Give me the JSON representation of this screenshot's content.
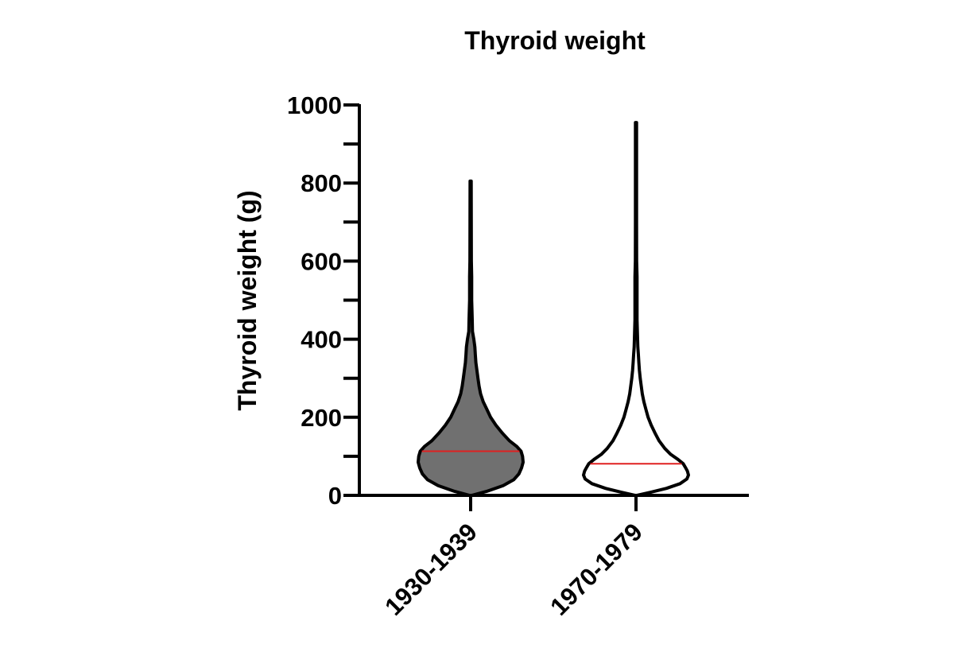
{
  "chart_data": {
    "type": "violin",
    "title": "Thyroid weight",
    "ylabel": "Thyroid weight (g)",
    "xlabel": "",
    "ylim": [
      0,
      1000
    ],
    "yticks": [
      0,
      200,
      400,
      600,
      800,
      1000
    ],
    "yminor_ticks": [
      100,
      300,
      500,
      700,
      900
    ],
    "grid": false,
    "legend": "none",
    "categories": [
      "1930-1939",
      "1970-1979"
    ],
    "series": [
      {
        "category": "1930-1939",
        "fill": "#707070",
        "median": 113,
        "median_color": "#e02020",
        "max": 805,
        "density_profile": [
          [
            0,
            0.02
          ],
          [
            10,
            0.3
          ],
          [
            25,
            0.62
          ],
          [
            40,
            0.82
          ],
          [
            55,
            0.92
          ],
          [
            70,
            0.97
          ],
          [
            85,
            1.0
          ],
          [
            100,
            0.99
          ],
          [
            113,
            0.96
          ],
          [
            125,
            0.88
          ],
          [
            140,
            0.74
          ],
          [
            160,
            0.6
          ],
          [
            180,
            0.48
          ],
          [
            200,
            0.38
          ],
          [
            220,
            0.31
          ],
          [
            240,
            0.24
          ],
          [
            260,
            0.19
          ],
          [
            280,
            0.16
          ],
          [
            300,
            0.14
          ],
          [
            320,
            0.12
          ],
          [
            340,
            0.1
          ],
          [
            360,
            0.09
          ],
          [
            380,
            0.08
          ],
          [
            400,
            0.06
          ],
          [
            420,
            0.035
          ],
          [
            450,
            0.03
          ],
          [
            500,
            0.02
          ],
          [
            560,
            0.02
          ],
          [
            600,
            0.013
          ],
          [
            700,
            0.012
          ],
          [
            805,
            0.01
          ]
        ]
      },
      {
        "category": "1970-1979",
        "fill": "#ffffff",
        "median": 81,
        "median_color": "#e02020",
        "max": 955,
        "density_profile": [
          [
            0,
            0.02
          ],
          [
            8,
            0.28
          ],
          [
            18,
            0.58
          ],
          [
            30,
            0.84
          ],
          [
            42,
            0.97
          ],
          [
            52,
            1.0
          ],
          [
            62,
            0.98
          ],
          [
            72,
            0.94
          ],
          [
            81,
            0.9
          ],
          [
            92,
            0.8
          ],
          [
            105,
            0.66
          ],
          [
            120,
            0.55
          ],
          [
            140,
            0.44
          ],
          [
            160,
            0.36
          ],
          [
            180,
            0.29
          ],
          [
            200,
            0.23
          ],
          [
            220,
            0.19
          ],
          [
            240,
            0.15
          ],
          [
            260,
            0.12
          ],
          [
            280,
            0.1
          ],
          [
            300,
            0.08
          ],
          [
            320,
            0.065
          ],
          [
            340,
            0.055
          ],
          [
            360,
            0.045
          ],
          [
            380,
            0.035
          ],
          [
            400,
            0.03
          ],
          [
            450,
            0.02
          ],
          [
            500,
            0.02
          ],
          [
            560,
            0.02
          ],
          [
            600,
            0.012
          ],
          [
            700,
            0.01
          ],
          [
            800,
            0.01
          ],
          [
            955,
            0.01
          ]
        ]
      }
    ]
  }
}
